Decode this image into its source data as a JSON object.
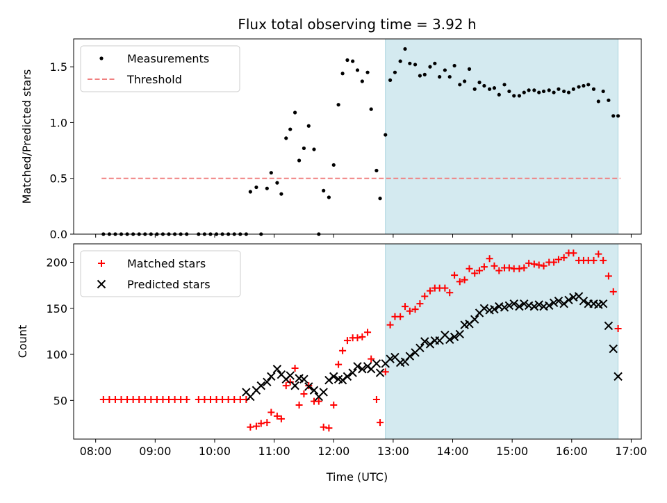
{
  "chart_data": {
    "title": "Flux total observing time = 3.92 h",
    "xlabel": "Time (UTC)",
    "xticks": [
      "08:00",
      "09:00",
      "10:00",
      "11:00",
      "12:00",
      "13:00",
      "14:00",
      "15:00",
      "16:00",
      "17:00"
    ],
    "xlim_hours": [
      7.63,
      17.17
    ],
    "highlight_span_hours": [
      12.87,
      16.78
    ],
    "highlight_color": "#d4eaf0",
    "panels": [
      {
        "type": "scatter",
        "ylabel": "Matched/Predicted stars",
        "ylim": [
          0,
          1.75
        ],
        "yticks": [
          "0.0",
          "0.5",
          "1.0",
          "1.5"
        ],
        "legend_position": "top-left",
        "series": [
          {
            "name": "Measurements",
            "marker": "dot",
            "color": "#000000",
            "x": [
              8.13,
              8.23,
              8.33,
              8.43,
              8.53,
              8.63,
              8.73,
              8.83,
              8.93,
              9.03,
              9.13,
              9.23,
              9.33,
              9.43,
              9.53,
              9.73,
              9.83,
              9.93,
              10.03,
              10.13,
              10.23,
              10.33,
              10.43,
              10.53,
              10.6,
              10.7,
              10.78,
              10.88,
              10.95,
              11.05,
              11.12,
              11.2,
              11.27,
              11.35,
              11.42,
              11.5,
              11.58,
              11.67,
              11.75,
              11.83,
              11.92,
              12.0,
              12.08,
              12.15,
              12.23,
              12.32,
              12.4,
              12.48,
              12.57,
              12.63,
              12.72,
              12.78,
              12.87,
              12.95,
              13.03,
              13.12,
              13.2,
              13.28,
              13.37,
              13.45,
              13.53,
              13.62,
              13.7,
              13.78,
              13.87,
              13.95,
              14.03,
              14.12,
              14.2,
              14.28,
              14.37,
              14.45,
              14.53,
              14.62,
              14.7,
              14.78,
              14.87,
              14.95,
              15.03,
              15.12,
              15.2,
              15.28,
              15.37,
              15.45,
              15.53,
              15.62,
              15.7,
              15.78,
              15.87,
              15.95,
              16.03,
              16.12,
              16.2,
              16.28,
              16.37,
              16.45,
              16.53,
              16.62,
              16.7,
              16.78
            ],
            "y": [
              0,
              0,
              0,
              0,
              0,
              0,
              0,
              0,
              0,
              0,
              0,
              0,
              0,
              0,
              0,
              0,
              0,
              0,
              0,
              0,
              0,
              0,
              0,
              0,
              0.38,
              0.42,
              0,
              0.41,
              0.55,
              0.46,
              0.36,
              0.86,
              0.94,
              1.09,
              0.66,
              0.77,
              0.97,
              0.76,
              0,
              0.39,
              0.33,
              0.62,
              1.16,
              1.44,
              1.56,
              1.55,
              1.47,
              1.37,
              1.45,
              1.12,
              0.57,
              0.32,
              0.89,
              1.38,
              1.45,
              1.55,
              1.66,
              1.53,
              1.52,
              1.42,
              1.43,
              1.5,
              1.53,
              1.41,
              1.47,
              1.41,
              1.51,
              1.34,
              1.37,
              1.48,
              1.3,
              1.36,
              1.33,
              1.3,
              1.31,
              1.25,
              1.34,
              1.28,
              1.24,
              1.24,
              1.27,
              1.29,
              1.29,
              1.27,
              1.28,
              1.29,
              1.27,
              1.3,
              1.28,
              1.27,
              1.3,
              1.32,
              1.33,
              1.34,
              1.3,
              1.19,
              1.28,
              1.2,
              1.06,
              1.06
            ]
          },
          {
            "name": "Threshold",
            "type": "line",
            "dash": "dashed",
            "color": "#f08080",
            "x": [
              8.1,
              16.82
            ],
            "y": [
              0.5,
              0.5
            ]
          }
        ]
      },
      {
        "type": "scatter",
        "ylabel": "Count",
        "ylim": [
          8,
          220
        ],
        "yticks": [
          "50",
          "100",
          "150",
          "200"
        ],
        "legend_position": "top-left",
        "series": [
          {
            "name": "Matched stars",
            "marker": "plus",
            "color": "#ff0000",
            "x": [
              8.13,
              8.23,
              8.33,
              8.43,
              8.53,
              8.63,
              8.73,
              8.83,
              8.93,
              9.03,
              9.13,
              9.23,
              9.33,
              9.43,
              9.53,
              9.73,
              9.83,
              9.93,
              10.03,
              10.13,
              10.23,
              10.33,
              10.43,
              10.53,
              10.6,
              10.7,
              10.78,
              10.88,
              10.95,
              11.05,
              11.12,
              11.2,
              11.27,
              11.35,
              11.42,
              11.5,
              11.58,
              11.67,
              11.75,
              11.83,
              11.92,
              12.0,
              12.08,
              12.15,
              12.23,
              12.32,
              12.4,
              12.48,
              12.57,
              12.63,
              12.72,
              12.78,
              12.87,
              12.95,
              13.03,
              13.12,
              13.2,
              13.28,
              13.37,
              13.45,
              13.53,
              13.62,
              13.7,
              13.78,
              13.87,
              13.95,
              14.03,
              14.12,
              14.2,
              14.28,
              14.37,
              14.45,
              14.53,
              14.62,
              14.7,
              14.78,
              14.87,
              14.95,
              15.03,
              15.12,
              15.2,
              15.28,
              15.37,
              15.45,
              15.53,
              15.62,
              15.7,
              15.78,
              15.87,
              15.95,
              16.03,
              16.12,
              16.2,
              16.28,
              16.37,
              16.45,
              16.53,
              16.62,
              16.7,
              16.78
            ],
            "y": [
              51,
              51,
              51,
              51,
              51,
              51,
              51,
              51,
              51,
              51,
              51,
              51,
              51,
              51,
              51,
              51,
              51,
              51,
              51,
              51,
              51,
              51,
              51,
              51,
              21,
              22,
              25,
              26,
              37,
              33,
              30,
              66,
              70,
              85,
              45,
              57,
              66,
              49,
              49,
              21,
              20,
              45,
              89,
              104,
              115,
              118,
              118,
              119,
              124,
              95,
              51,
              26,
              81,
              132,
              141,
              141,
              152,
              147,
              149,
              155,
              163,
              169,
              172,
              172,
              172,
              167,
              186,
              179,
              181,
              193,
              188,
              191,
              195,
              204,
              196,
              191,
              194,
              194,
              193,
              193,
              194,
              199,
              198,
              197,
              196,
              200,
              200,
              203,
              205,
              210,
              210,
              202,
              202,
              202,
              202,
              209,
              202,
              185,
              168,
              128
            ]
          },
          {
            "name": "Predicted stars",
            "marker": "x",
            "color": "#000000",
            "x": [
              10.53,
              10.6,
              10.7,
              10.78,
              10.88,
              10.95,
              11.05,
              11.12,
              11.2,
              11.27,
              11.35,
              11.42,
              11.5,
              11.58,
              11.67,
              11.75,
              11.83,
              11.92,
              12.0,
              12.08,
              12.15,
              12.23,
              12.32,
              12.4,
              12.48,
              12.57,
              12.63,
              12.72,
              12.78,
              12.87,
              12.95,
              13.03,
              13.12,
              13.2,
              13.28,
              13.37,
              13.45,
              13.53,
              13.62,
              13.7,
              13.78,
              13.87,
              13.95,
              14.03,
              14.12,
              14.2,
              14.28,
              14.37,
              14.45,
              14.53,
              14.62,
              14.7,
              14.78,
              14.87,
              14.95,
              15.03,
              15.12,
              15.2,
              15.28,
              15.37,
              15.45,
              15.53,
              15.62,
              15.7,
              15.78,
              15.87,
              15.95,
              16.03,
              16.12,
              16.2,
              16.28,
              16.37,
              16.45,
              16.53,
              16.62,
              16.7,
              16.78
            ],
            "y": [
              59,
              54,
              61,
              66,
              70,
              76,
              84,
              78,
              73,
              77,
              66,
              74,
              73,
              65,
              61,
              54,
              59,
              72,
              76,
              73,
              72,
              76,
              80,
              87,
              84,
              87,
              84,
              90,
              80,
              90,
              95,
              97,
              91,
              92,
              98,
              102,
              107,
              114,
              111,
              115,
              115,
              121,
              116,
              119,
              122,
              132,
              133,
              138,
              145,
              150,
              148,
              149,
              152,
              151,
              153,
              155,
              152,
              155,
              153,
              152,
              154,
              152,
              153,
              156,
              158,
              155,
              159,
              162,
              163,
              158,
              155,
              155,
              154,
              155,
              131,
              106,
              76
            ]
          }
        ]
      }
    ]
  }
}
